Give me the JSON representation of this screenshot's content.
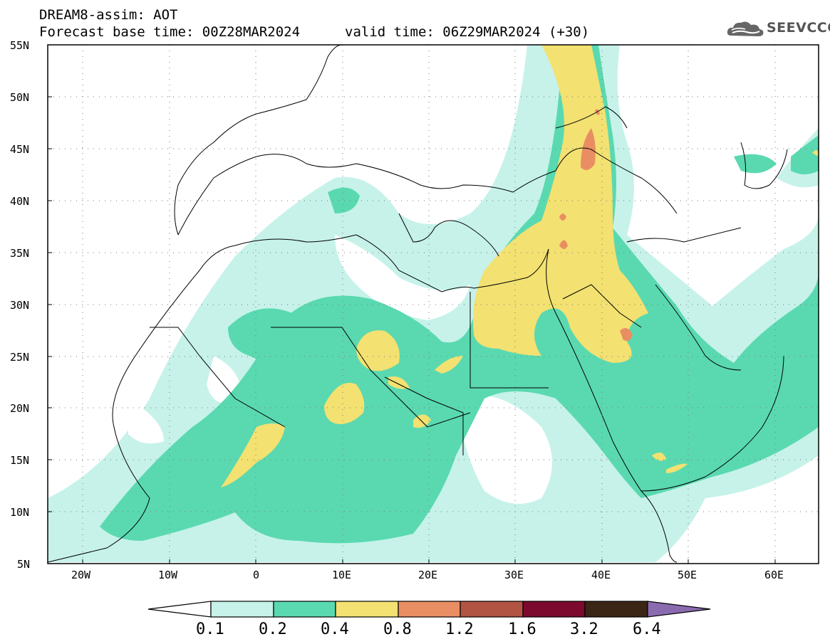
{
  "header": {
    "title_line1": "DREAM8-assim: AOT",
    "title_line2": "Forecast base time: 00Z28MAR2024",
    "valid_time": "valid time: 06Z29MAR2024 (+30)"
  },
  "logo": {
    "text": "SEEVCCC",
    "icon": "cloud-icon"
  },
  "axes": {
    "lat_labels": [
      "55N",
      "50N",
      "45N",
      "40N",
      "35N",
      "30N",
      "25N",
      "20N",
      "15N",
      "10N",
      "5N"
    ],
    "lon_labels": [
      "20W",
      "10W",
      "0",
      "10E",
      "20E",
      "30E",
      "40E",
      "50E",
      "60E"
    ],
    "lat_range": [
      5,
      55
    ],
    "lon_range": [
      -25,
      65
    ],
    "grid": "dotted"
  },
  "colorbar": {
    "labels": [
      "0.1",
      "0.2",
      "0.4",
      "0.8",
      "1.2",
      "1.6",
      "3.2",
      "6.4"
    ],
    "colors": [
      "#ffffff",
      "#c6f2ea",
      "#5ad9b0",
      "#f3e171",
      "#e98e62",
      "#b25443",
      "#7c0a2e",
      "#3b2616",
      "#8b6bb0"
    ]
  },
  "field": {
    "name": "AOT",
    "palette": {
      "c1": "#c6f2ea",
      "c2": "#5ad9b0",
      "c3": "#f3e171",
      "c4": "#e98e62"
    }
  }
}
